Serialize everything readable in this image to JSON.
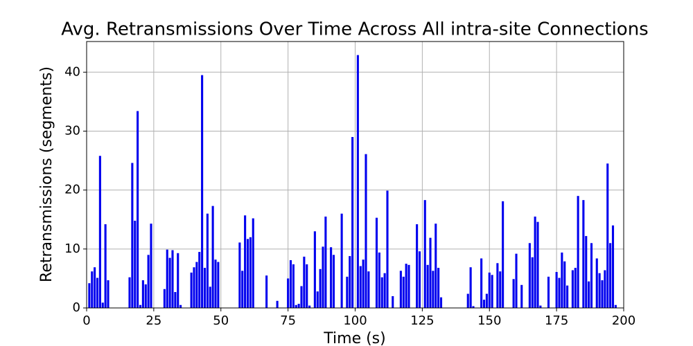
{
  "chart_data": {
    "type": "bar",
    "title": "Avg. Retransmissions Over Time Across All intra-site Connections",
    "xlabel": "Time (s)",
    "ylabel": "Retransmissions (segments)",
    "color": "#0000ee",
    "grid": true,
    "xlim": [
      0,
      200
    ],
    "ylim": [
      0,
      45.2
    ],
    "xticks": [
      0,
      25,
      50,
      75,
      100,
      125,
      150,
      175,
      200
    ],
    "yticks": [
      0,
      10,
      20,
      30,
      40
    ],
    "x": [
      1,
      2,
      3,
      4,
      5,
      6,
      7,
      8,
      16,
      17,
      18,
      19,
      20,
      21,
      22,
      23,
      24,
      29,
      30,
      31,
      32,
      33,
      34,
      35,
      39,
      40,
      41,
      42,
      43,
      44,
      45,
      46,
      47,
      48,
      49,
      57,
      58,
      59,
      60,
      61,
      62,
      67,
      71,
      75,
      76,
      77,
      78,
      79,
      80,
      81,
      82,
      83,
      85,
      86,
      87,
      88,
      89,
      91,
      92,
      95,
      97,
      98,
      99,
      101,
      102,
      103,
      104,
      105,
      108,
      109,
      110,
      111,
      112,
      114,
      117,
      118,
      119,
      120,
      123,
      124,
      126,
      127,
      128,
      129,
      130,
      131,
      132,
      142,
      143,
      144,
      147,
      148,
      149,
      150,
      151,
      153,
      154,
      155,
      159,
      160,
      162,
      165,
      166,
      167,
      168,
      169,
      172,
      175,
      176,
      177,
      178,
      179,
      181,
      182,
      183,
      185,
      186,
      187,
      188,
      190,
      191,
      192,
      193,
      194,
      195,
      196,
      197
    ],
    "values": [
      4.2,
      6.2,
      6.9,
      5.1,
      25.8,
      0.9,
      14.2,
      4.7,
      5.2,
      24.6,
      14.8,
      33.4,
      0.5,
      4.7,
      4.0,
      9.0,
      14.3,
      3.2,
      9.9,
      8.5,
      9.8,
      2.7,
      9.3,
      0.5,
      6.0,
      6.9,
      7.8,
      9.5,
      39.5,
      6.8,
      16.0,
      3.6,
      17.3,
      8.2,
      7.8,
      11.1,
      6.3,
      15.7,
      11.7,
      12.0,
      15.2,
      5.5,
      1.2,
      5.0,
      8.1,
      7.4,
      0.5,
      0.7,
      3.7,
      8.7,
      7.4,
      0.4,
      13.0,
      2.8,
      6.6,
      10.4,
      15.5,
      10.3,
      9.0,
      16.0,
      5.3,
      8.8,
      29.0,
      42.9,
      7.1,
      8.2,
      26.1,
      6.2,
      15.3,
      9.4,
      5.2,
      5.9,
      19.9,
      2.0,
      6.3,
      5.3,
      7.5,
      7.3,
      14.2,
      9.6,
      18.3,
      7.3,
      11.9,
      6.3,
      14.3,
      6.8,
      1.8,
      2.4,
      6.9,
      0.3,
      8.4,
      1.4,
      2.4,
      6.0,
      5.6,
      7.6,
      6.2,
      18.1,
      4.9,
      9.2,
      3.9,
      11.0,
      8.6,
      15.5,
      14.6,
      0.4,
      5.3,
      6.1,
      5.1,
      9.4,
      7.9,
      3.8,
      6.4,
      6.8,
      19.0,
      18.3,
      12.2,
      4.5,
      11.0,
      8.4,
      5.9,
      4.7,
      6.4,
      24.5,
      11.0,
      14.0,
      0.5
    ]
  }
}
